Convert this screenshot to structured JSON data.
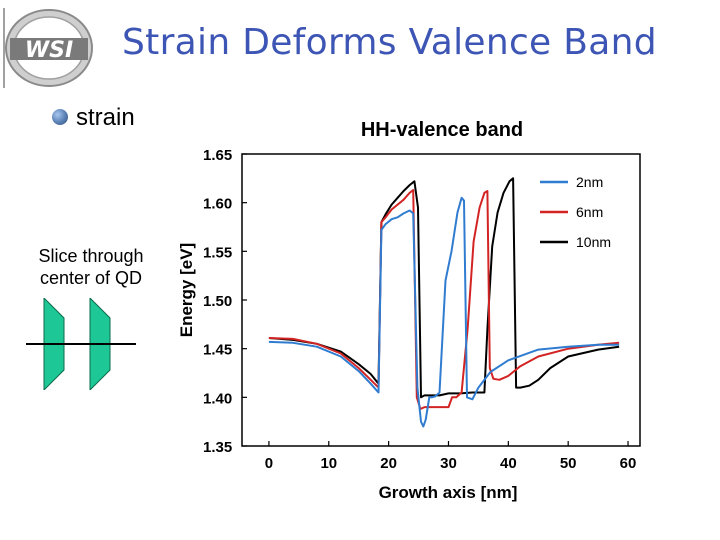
{
  "header": {
    "logo_text": "WSI",
    "title": "Strain Deforms Valence Band"
  },
  "bullet": {
    "label": "strain"
  },
  "left_panel": {
    "caption_line1": "Slice through",
    "caption_line2": "center of QD"
  },
  "colors": {
    "title": "#3d55b4",
    "series_2nm": "#2f7cd0",
    "series_6nm": "#d32424",
    "series_10nm": "#000000",
    "qd_fill": "#1ec896"
  },
  "chart_data": {
    "type": "line",
    "title": "HH-valence band",
    "xlabel": "Growth axis [nm]",
    "ylabel": "Energy [eV]",
    "xlim": [
      -4.5,
      62
    ],
    "ylim": [
      1.35,
      1.65
    ],
    "x_ticks": [
      0,
      10,
      20,
      30,
      40,
      50,
      60
    ],
    "x_tick_labels": [
      "0",
      "10",
      "20",
      "30",
      "40",
      "50",
      "60"
    ],
    "y_ticks": [
      1.35,
      1.4,
      1.45,
      1.5,
      1.55,
      1.6,
      1.65
    ],
    "y_tick_labels": [
      "1.35",
      "1.40",
      "1.45",
      "1.50",
      "1.55",
      "1.60",
      "1.65"
    ],
    "legend_position": "top-right",
    "series": [
      {
        "name": "2nm",
        "x": [
          0,
          4,
          8,
          12,
          15,
          17,
          18.3,
          18.8,
          19.5,
          20.5,
          21.5,
          22.5,
          23.5,
          24.1,
          24.8,
          25.4,
          25.8,
          26.2,
          26.8,
          27.2,
          27.8,
          28.5,
          29.5,
          30.5,
          31.5,
          32.2,
          32.6,
          33.1,
          34,
          35,
          37,
          40,
          45,
          50,
          55,
          58.5
        ],
        "y": [
          1.457,
          1.456,
          1.452,
          1.442,
          1.427,
          1.414,
          1.405,
          1.572,
          1.578,
          1.583,
          1.585,
          1.589,
          1.592,
          1.589,
          1.41,
          1.375,
          1.37,
          1.377,
          1.4,
          1.4,
          1.401,
          1.405,
          1.52,
          1.55,
          1.59,
          1.605,
          1.602,
          1.4,
          1.398,
          1.41,
          1.426,
          1.438,
          1.449,
          1.452,
          1.454,
          1.454
        ]
      },
      {
        "name": "6nm",
        "x": [
          0,
          4,
          8,
          12,
          15,
          17,
          18.3,
          18.8,
          19.5,
          20.5,
          21.5,
          22.5,
          23.5,
          24.1,
          24.7,
          25.3,
          26,
          28,
          30,
          30.6,
          31.3,
          32.2,
          33.2,
          34.2,
          35.2,
          36,
          36.5,
          36.9,
          37.5,
          38.5,
          40,
          42,
          45,
          50,
          55,
          58.5
        ],
        "y": [
          1.461,
          1.46,
          1.455,
          1.445,
          1.43,
          1.418,
          1.41,
          1.58,
          1.585,
          1.593,
          1.598,
          1.603,
          1.61,
          1.613,
          1.4,
          1.388,
          1.39,
          1.39,
          1.39,
          1.4,
          1.4,
          1.405,
          1.47,
          1.56,
          1.595,
          1.61,
          1.612,
          1.43,
          1.419,
          1.418,
          1.422,
          1.432,
          1.442,
          1.45,
          1.454,
          1.456
        ]
      },
      {
        "name": "10nm",
        "x": [
          0,
          4,
          8,
          12,
          15,
          17,
          18.3,
          18.8,
          19.5,
          20.5,
          21.5,
          22.5,
          23.5,
          24.3,
          24.9,
          25.4,
          26,
          27,
          28.5,
          30,
          32,
          34,
          36,
          36.5,
          37.3,
          38.2,
          39.2,
          40.2,
          40.8,
          41.3,
          42,
          43.5,
          45,
          47,
          50,
          55,
          58.5
        ],
        "y": [
          1.461,
          1.459,
          1.455,
          1.447,
          1.434,
          1.424,
          1.414,
          1.58,
          1.588,
          1.598,
          1.605,
          1.612,
          1.618,
          1.622,
          1.595,
          1.4,
          1.402,
          1.402,
          1.402,
          1.404,
          1.404,
          1.405,
          1.405,
          1.47,
          1.555,
          1.59,
          1.61,
          1.622,
          1.625,
          1.41,
          1.41,
          1.412,
          1.418,
          1.43,
          1.442,
          1.449,
          1.452
        ]
      }
    ]
  }
}
